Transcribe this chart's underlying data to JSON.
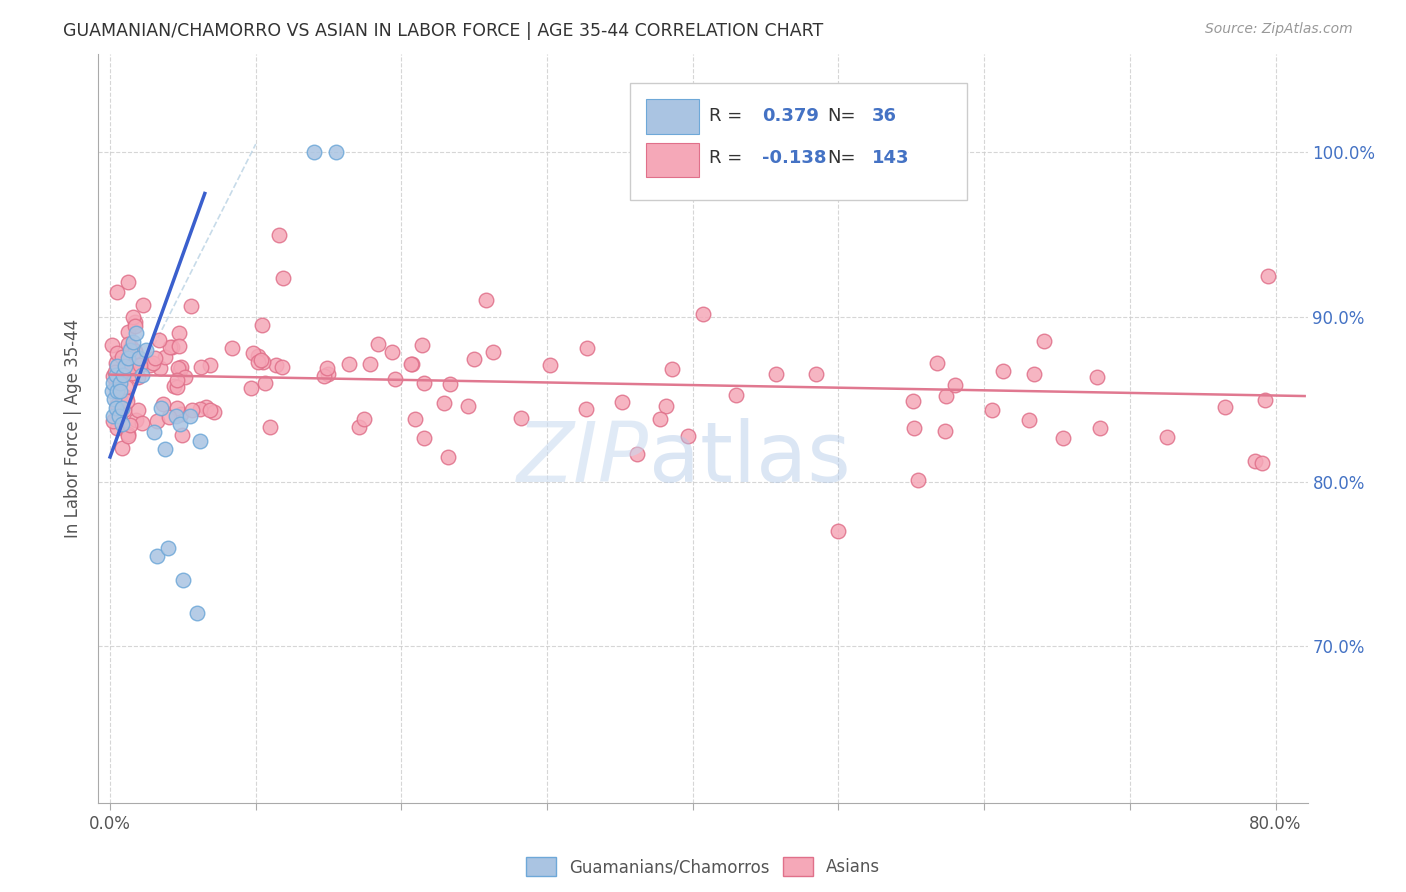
{
  "title": "GUAMANIAN/CHAMORRO VS ASIAN IN LABOR FORCE | AGE 35-44 CORRELATION CHART",
  "source": "Source: ZipAtlas.com",
  "ylabel": "In Labor Force | Age 35-44",
  "y_tick_vals": [
    70.0,
    80.0,
    90.0,
    100.0
  ],
  "y_tick_labels": [
    "70.0%",
    "80.0%",
    "90.0%",
    "100.0%"
  ],
  "xlim": [
    -0.008,
    0.822
  ],
  "ylim": [
    60.5,
    106.0
  ],
  "guamanian_color": "#aac4e2",
  "guamanian_edge": "#6ea8d8",
  "asian_color": "#f5a8b8",
  "asian_edge": "#e0708a",
  "trendline_guamanian_color": "#3a5fcd",
  "trendline_asian_color": "#e07890",
  "trendline_diag_color": "#b0cce0",
  "R_guamanian": 0.379,
  "N_guamanian": 36,
  "R_asian": -0.138,
  "N_asian": 143,
  "legend_label_guamanian": "Guamanians/Chamorros",
  "legend_label_asian": "Asians",
  "watermark_zip_color": "#c8daf0",
  "watermark_atlas_color": "#b0c8e8"
}
